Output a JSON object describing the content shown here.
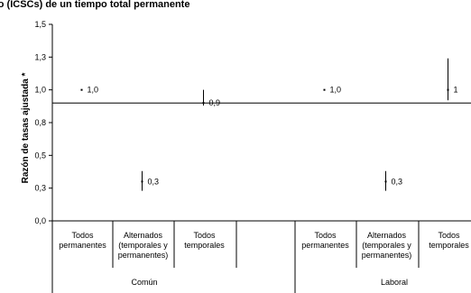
{
  "chart_data": {
    "type": "scatter",
    "title": "cto (ICSCs) de un tiempo total permanente",
    "ylabel": "Razón de tasas ajustada *",
    "ylim": [
      0,
      1.5
    ],
    "yticks": [
      "0,0",
      "0,3",
      "0,5",
      "0,8",
      "1,0",
      "1,3",
      "1,5"
    ],
    "ytick_values": [
      0.0,
      0.25,
      0.5,
      0.75,
      1.0,
      1.25,
      1.5
    ],
    "reference_line": 0.9,
    "groups": [
      {
        "label": "Común",
        "categories": [
          [
            "Todos",
            "permanentes"
          ],
          [
            "Alternados",
            "(temporales y",
            "permanentes)"
          ],
          [
            "Todos",
            "temporales"
          ]
        ]
      },
      {
        "label": "Laboral",
        "categories": [
          [
            "Todos",
            "permanentes"
          ],
          [
            "Alternados",
            "(temporales y",
            "permanentes)"
          ],
          [
            "Todos",
            "temporales"
          ]
        ]
      }
    ],
    "points": [
      {
        "group": 0,
        "category": 0,
        "value": 1.0,
        "low": 1.0,
        "high": 1.0,
        "label": "1,0"
      },
      {
        "group": 0,
        "category": 1,
        "value": 0.3,
        "low": 0.23,
        "high": 0.38,
        "label": "0,3"
      },
      {
        "group": 0,
        "category": 2,
        "value": 0.9,
        "low": 0.88,
        "high": 1.0,
        "label": "0,9"
      },
      {
        "group": 1,
        "category": 0,
        "value": 1.0,
        "low": 1.0,
        "high": 1.0,
        "label": "1,0"
      },
      {
        "group": 1,
        "category": 1,
        "value": 0.3,
        "low": 0.23,
        "high": 0.38,
        "label": "0,3"
      },
      {
        "group": 1,
        "category": 2,
        "value": 1.0,
        "low": 0.92,
        "high": 1.24,
        "label": "1"
      }
    ]
  }
}
